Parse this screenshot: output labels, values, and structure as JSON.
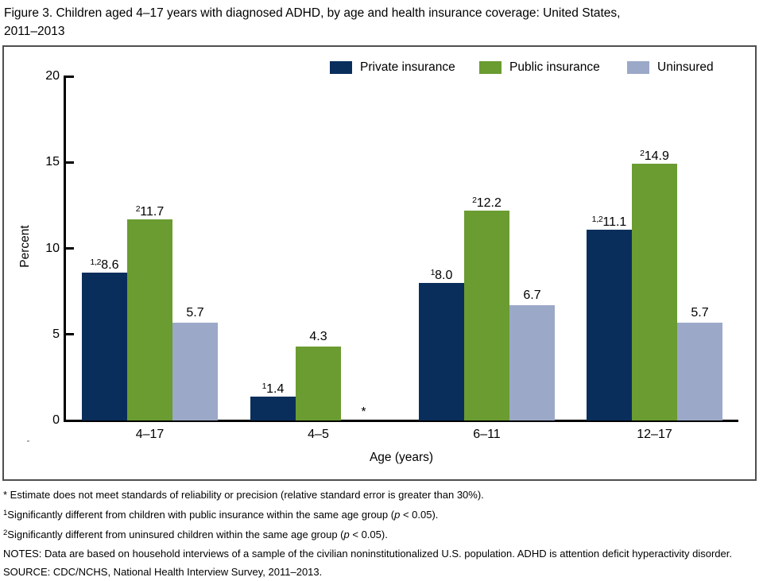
{
  "title": {
    "line1": "Figure 3. Children aged 4–17 years with diagnosed ADHD, by age and health insurance coverage: United States,",
    "line2": "2011–2013"
  },
  "colors": {
    "private_insurance": "#0a2e5c",
    "public_insurance": "#6a9c31",
    "uninsured": "#9ba8c8",
    "axis": "#000000",
    "box_border": "#4f4f4f"
  },
  "legend": {
    "items": [
      {
        "label": "Private insurance",
        "color": "#0a2e5c"
      },
      {
        "label": "Public insurance",
        "color": "#6a9c31"
      },
      {
        "label": "Uninsured",
        "color": "#9ba8c8"
      }
    ]
  },
  "chart_data": {
    "type": "bar",
    "title": "Children aged 4–17 years with diagnosed ADHD, by age and health insurance coverage: United States, 2011–2013",
    "categories": [
      "4–17",
      "4–5",
      "6–11",
      "12–17"
    ],
    "series": [
      {
        "name": "Private insurance",
        "color": "#0a2e5c",
        "values": [
          8.6,
          1.4,
          8.0,
          11.1
        ],
        "value_labels": [
          "8.6",
          "1.4",
          "8.0",
          "11.1"
        ],
        "superscripts": [
          "1,2",
          "1",
          "1",
          "1,2"
        ]
      },
      {
        "name": "Public insurance",
        "color": "#6a9c31",
        "values": [
          11.7,
          4.3,
          12.2,
          14.9
        ],
        "value_labels": [
          "11.7",
          "4.3",
          "12.2",
          "14.9"
        ],
        "superscripts": [
          "2",
          "",
          "2",
          "2"
        ]
      },
      {
        "name": "Uninsured",
        "color": "#9ba8c8",
        "values": [
          5.7,
          null,
          6.7,
          5.7
        ],
        "value_labels": [
          "5.7",
          "*",
          "6.7",
          "5.7"
        ],
        "superscripts": [
          "",
          "",
          "",
          ""
        ]
      }
    ],
    "missing_marker": "*",
    "xlabel": "Age (years)",
    "ylabel": "Percent",
    "ylim": [
      0,
      20
    ],
    "yticks": [
      0,
      5,
      10,
      15,
      20
    ],
    "legend_position": "top-inside",
    "grid": false
  },
  "footnotes": [
    [
      {
        "t": "* Estimate does not meet standards of reliability or precision (relative standard error is greater than 30%).",
        "s": "n"
      }
    ],
    [
      {
        "t": "1",
        "s": "sup"
      },
      {
        "t": "Significantly different from children with public insurance within the same age group (",
        "s": "n"
      },
      {
        "t": "p",
        "s": "i"
      },
      {
        "t": " < 0.05).",
        "s": "n"
      }
    ],
    [
      {
        "t": "2",
        "s": "sup"
      },
      {
        "t": "Significantly different from uninsured children within the same age group (",
        "s": "n"
      },
      {
        "t": "p",
        "s": "i"
      },
      {
        "t": " < 0.05).",
        "s": "n"
      }
    ],
    [
      {
        "t": "NOTES: Data are based on household interviews of a sample of the civilian noninstitutionalized U.S. population. ADHD is attention deficit hyperactivity disorder.",
        "s": "n"
      }
    ],
    [
      {
        "t": "SOURCE: CDC/NCHS, National Health Interview Survey, 2011–2013.",
        "s": "n"
      }
    ]
  ]
}
